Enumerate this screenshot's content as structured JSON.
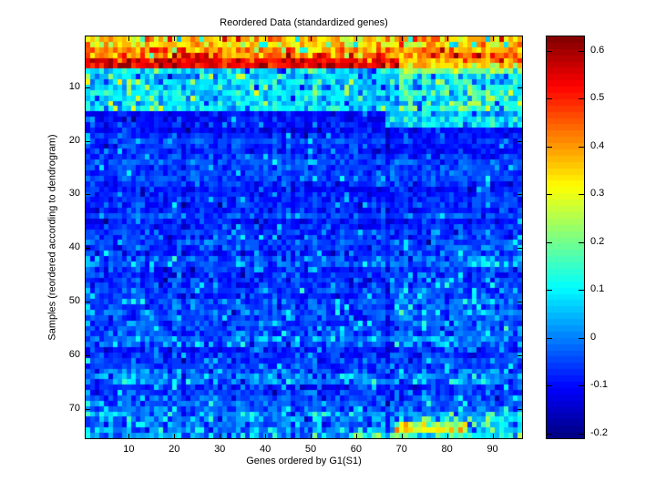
{
  "figure": {
    "background": "#ffffff",
    "axis_color": "#000000"
  },
  "chart_data": {
    "type": "heatmap",
    "title": "Reordered Data (standardized genes)",
    "xlabel": "Genes ordered by G1(S1)",
    "ylabel": "Samples (reordered according to dendrogram)",
    "colormap": "jet",
    "n_cols": 96,
    "n_rows": 75,
    "vmin": -0.21,
    "vmax": 0.63,
    "x_ticks": [
      10,
      20,
      30,
      40,
      50,
      60,
      70,
      80,
      90
    ],
    "y_ticks": [
      10,
      20,
      30,
      40,
      50,
      60,
      70
    ],
    "colorbar_ticks": [
      {
        "value": 0.6,
        "label": "0.6"
      },
      {
        "value": 0.5,
        "label": "0.5"
      },
      {
        "value": 0.4,
        "label": "0.4"
      },
      {
        "value": 0.3,
        "label": "0.3"
      },
      {
        "value": 0.2,
        "label": "0.2"
      },
      {
        "value": 0.1,
        "label": "0.1"
      },
      {
        "value": 0.0,
        "label": "0"
      },
      {
        "value": -0.1,
        "label": "-0.1"
      },
      {
        "value": -0.2,
        "label": "-0.2"
      }
    ],
    "legend_position": "right-colorbar",
    "grid": false,
    "generation": {
      "seed": 1337,
      "row_jitter": 0.012,
      "col_jitter": 0.008,
      "col_offsets": {
        "12": 0.012,
        "22": -0.02,
        "30": -0.024,
        "50": -0.015,
        "67": -0.045,
        "83": 0.01
      },
      "regions": [
        {
          "r0": 1,
          "r1": 2,
          "c0": 1,
          "c1": 96,
          "mean": 0.35,
          "std": 0.07,
          "hp": 0.04,
          "hv": 0.52,
          "lp": 0.05,
          "lv": 0.1
        },
        {
          "r0": 3,
          "r1": 3,
          "c0": 1,
          "c1": 96,
          "mean": 0.4,
          "std": 0.06,
          "hp": 0.06,
          "hv": 0.55,
          "lp": 0.03,
          "lv": 0.15
        },
        {
          "r0": 4,
          "r1": 4,
          "c0": 1,
          "c1": 96,
          "mean": 0.44,
          "std": 0.06,
          "hp": 0.1,
          "hv": 0.58,
          "lp": 0.02,
          "lv": 0.2
        },
        {
          "r0": 5,
          "r1": 6,
          "c0": 1,
          "c1": 69,
          "mean": 0.54,
          "std": 0.04,
          "hp": 0.1,
          "hv": 0.62,
          "lp": 0.04,
          "lv": 0.38
        },
        {
          "r0": 5,
          "r1": 5,
          "c0": 70,
          "c1": 96,
          "mean": 0.4,
          "std": 0.06,
          "hp": 0.04,
          "hv": 0.55,
          "lp": 0.04,
          "lv": 0.25
        },
        {
          "r0": 6,
          "r1": 6,
          "c0": 70,
          "c1": 96,
          "mean": 0.3,
          "std": 0.07,
          "hp": 0.03,
          "hv": 0.45,
          "lp": 0.05,
          "lv": 0.12
        },
        {
          "r0": 7,
          "r1": 14,
          "c0": 1,
          "c1": 96,
          "mean": 0.08,
          "std": 0.05,
          "hp": 0.06,
          "hv": 0.26,
          "lp": 0.06,
          "lv": -0.08
        },
        {
          "r0": 7,
          "r1": 7,
          "c0": 70,
          "c1": 96,
          "mean": 0.2,
          "std": 0.07,
          "hp": 0.05,
          "hv": 0.3,
          "lp": 0.04,
          "lv": 0.05
        },
        {
          "r0": 8,
          "r1": 14,
          "c0": 70,
          "c1": 96,
          "mean": 0.11,
          "std": 0.06,
          "hp": 0.1,
          "hv": 0.24,
          "lp": 0.04,
          "lv": -0.05
        },
        {
          "r0": 15,
          "r1": 18,
          "c0": 1,
          "c1": 66,
          "mean": -0.09,
          "std": 0.027,
          "hp": 0.03,
          "hv": 0.02,
          "lp": 0.02,
          "lv": -0.15
        },
        {
          "r0": 15,
          "r1": 17,
          "c0": 67,
          "c1": 96,
          "mean": 0.06,
          "std": 0.05,
          "hp": 0.05,
          "hv": 0.16,
          "lp": 0.05,
          "lv": -0.06
        },
        {
          "r0": 18,
          "r1": 18,
          "c0": 67,
          "c1": 96,
          "mean": -0.08,
          "std": 0.03,
          "hp": 0.02,
          "hv": 0.0,
          "lp": 0.02,
          "lv": -0.13
        },
        {
          "r0": 19,
          "r1": 36,
          "c0": 1,
          "c1": 96,
          "mean": -0.062,
          "std": 0.032,
          "hp": 0.035,
          "hv": 0.05,
          "lp": 0.02,
          "lv": -0.135
        },
        {
          "r0": 19,
          "r1": 23,
          "c0": 67,
          "c1": 96,
          "mean": -0.09,
          "std": 0.028,
          "hp": 0.02,
          "hv": 0.0,
          "lp": 0.02,
          "lv": -0.145
        },
        {
          "r0": 37,
          "r1": 55,
          "c0": 1,
          "c1": 96,
          "mean": -0.05,
          "std": 0.038,
          "hp": 0.05,
          "hv": 0.07,
          "lp": 0.02,
          "lv": -0.125
        },
        {
          "r0": 40,
          "r1": 55,
          "c0": 70,
          "c1": 96,
          "mean": -0.035,
          "std": 0.045,
          "hp": 0.07,
          "hv": 0.09,
          "lp": 0.02,
          "lv": -0.11
        },
        {
          "r0": 56,
          "r1": 58,
          "c0": 1,
          "c1": 96,
          "mean": -0.015,
          "std": 0.045,
          "hp": 0.08,
          "hv": 0.1,
          "lp": 0.02,
          "lv": -0.1
        },
        {
          "r0": 59,
          "r1": 62,
          "c0": 1,
          "c1": 96,
          "mean": -0.06,
          "std": 0.032,
          "hp": 0.04,
          "hv": 0.06,
          "lp": 0.02,
          "lv": -0.12
        },
        {
          "r0": 63,
          "r1": 65,
          "c0": 1,
          "c1": 96,
          "mean": -0.02,
          "std": 0.05,
          "hp": 0.1,
          "hv": 0.1,
          "lp": 0.02,
          "lv": -0.11
        },
        {
          "r0": 66,
          "r1": 70,
          "c0": 1,
          "c1": 96,
          "mean": -0.05,
          "std": 0.038,
          "hp": 0.05,
          "hv": 0.07,
          "lp": 0.02,
          "lv": -0.12
        },
        {
          "r0": 71,
          "r1": 75,
          "c0": 1,
          "c1": 96,
          "mean": -0.01,
          "std": 0.05,
          "hp": 0.1,
          "hv": 0.12,
          "lp": 0.02,
          "lv": -0.1
        },
        {
          "r0": 71,
          "r1": 75,
          "c0": 70,
          "c1": 96,
          "mean": 0.05,
          "std": 0.06,
          "hp": 0.12,
          "hv": 0.2,
          "lp": 0.03,
          "lv": -0.05
        },
        {
          "r0": 73,
          "r1": 74,
          "c0": 69,
          "c1": 84,
          "mean": 0.27,
          "std": 0.05,
          "hp": 0.12,
          "hv": 0.36,
          "lp": 0.05,
          "lv": 0.12
        },
        {
          "r0": 75,
          "r1": 75,
          "c0": 60,
          "c1": 96,
          "mean": 0.1,
          "std": 0.06,
          "hp": 0.08,
          "hv": 0.22,
          "lp": 0.05,
          "lv": -0.02
        }
      ]
    }
  }
}
